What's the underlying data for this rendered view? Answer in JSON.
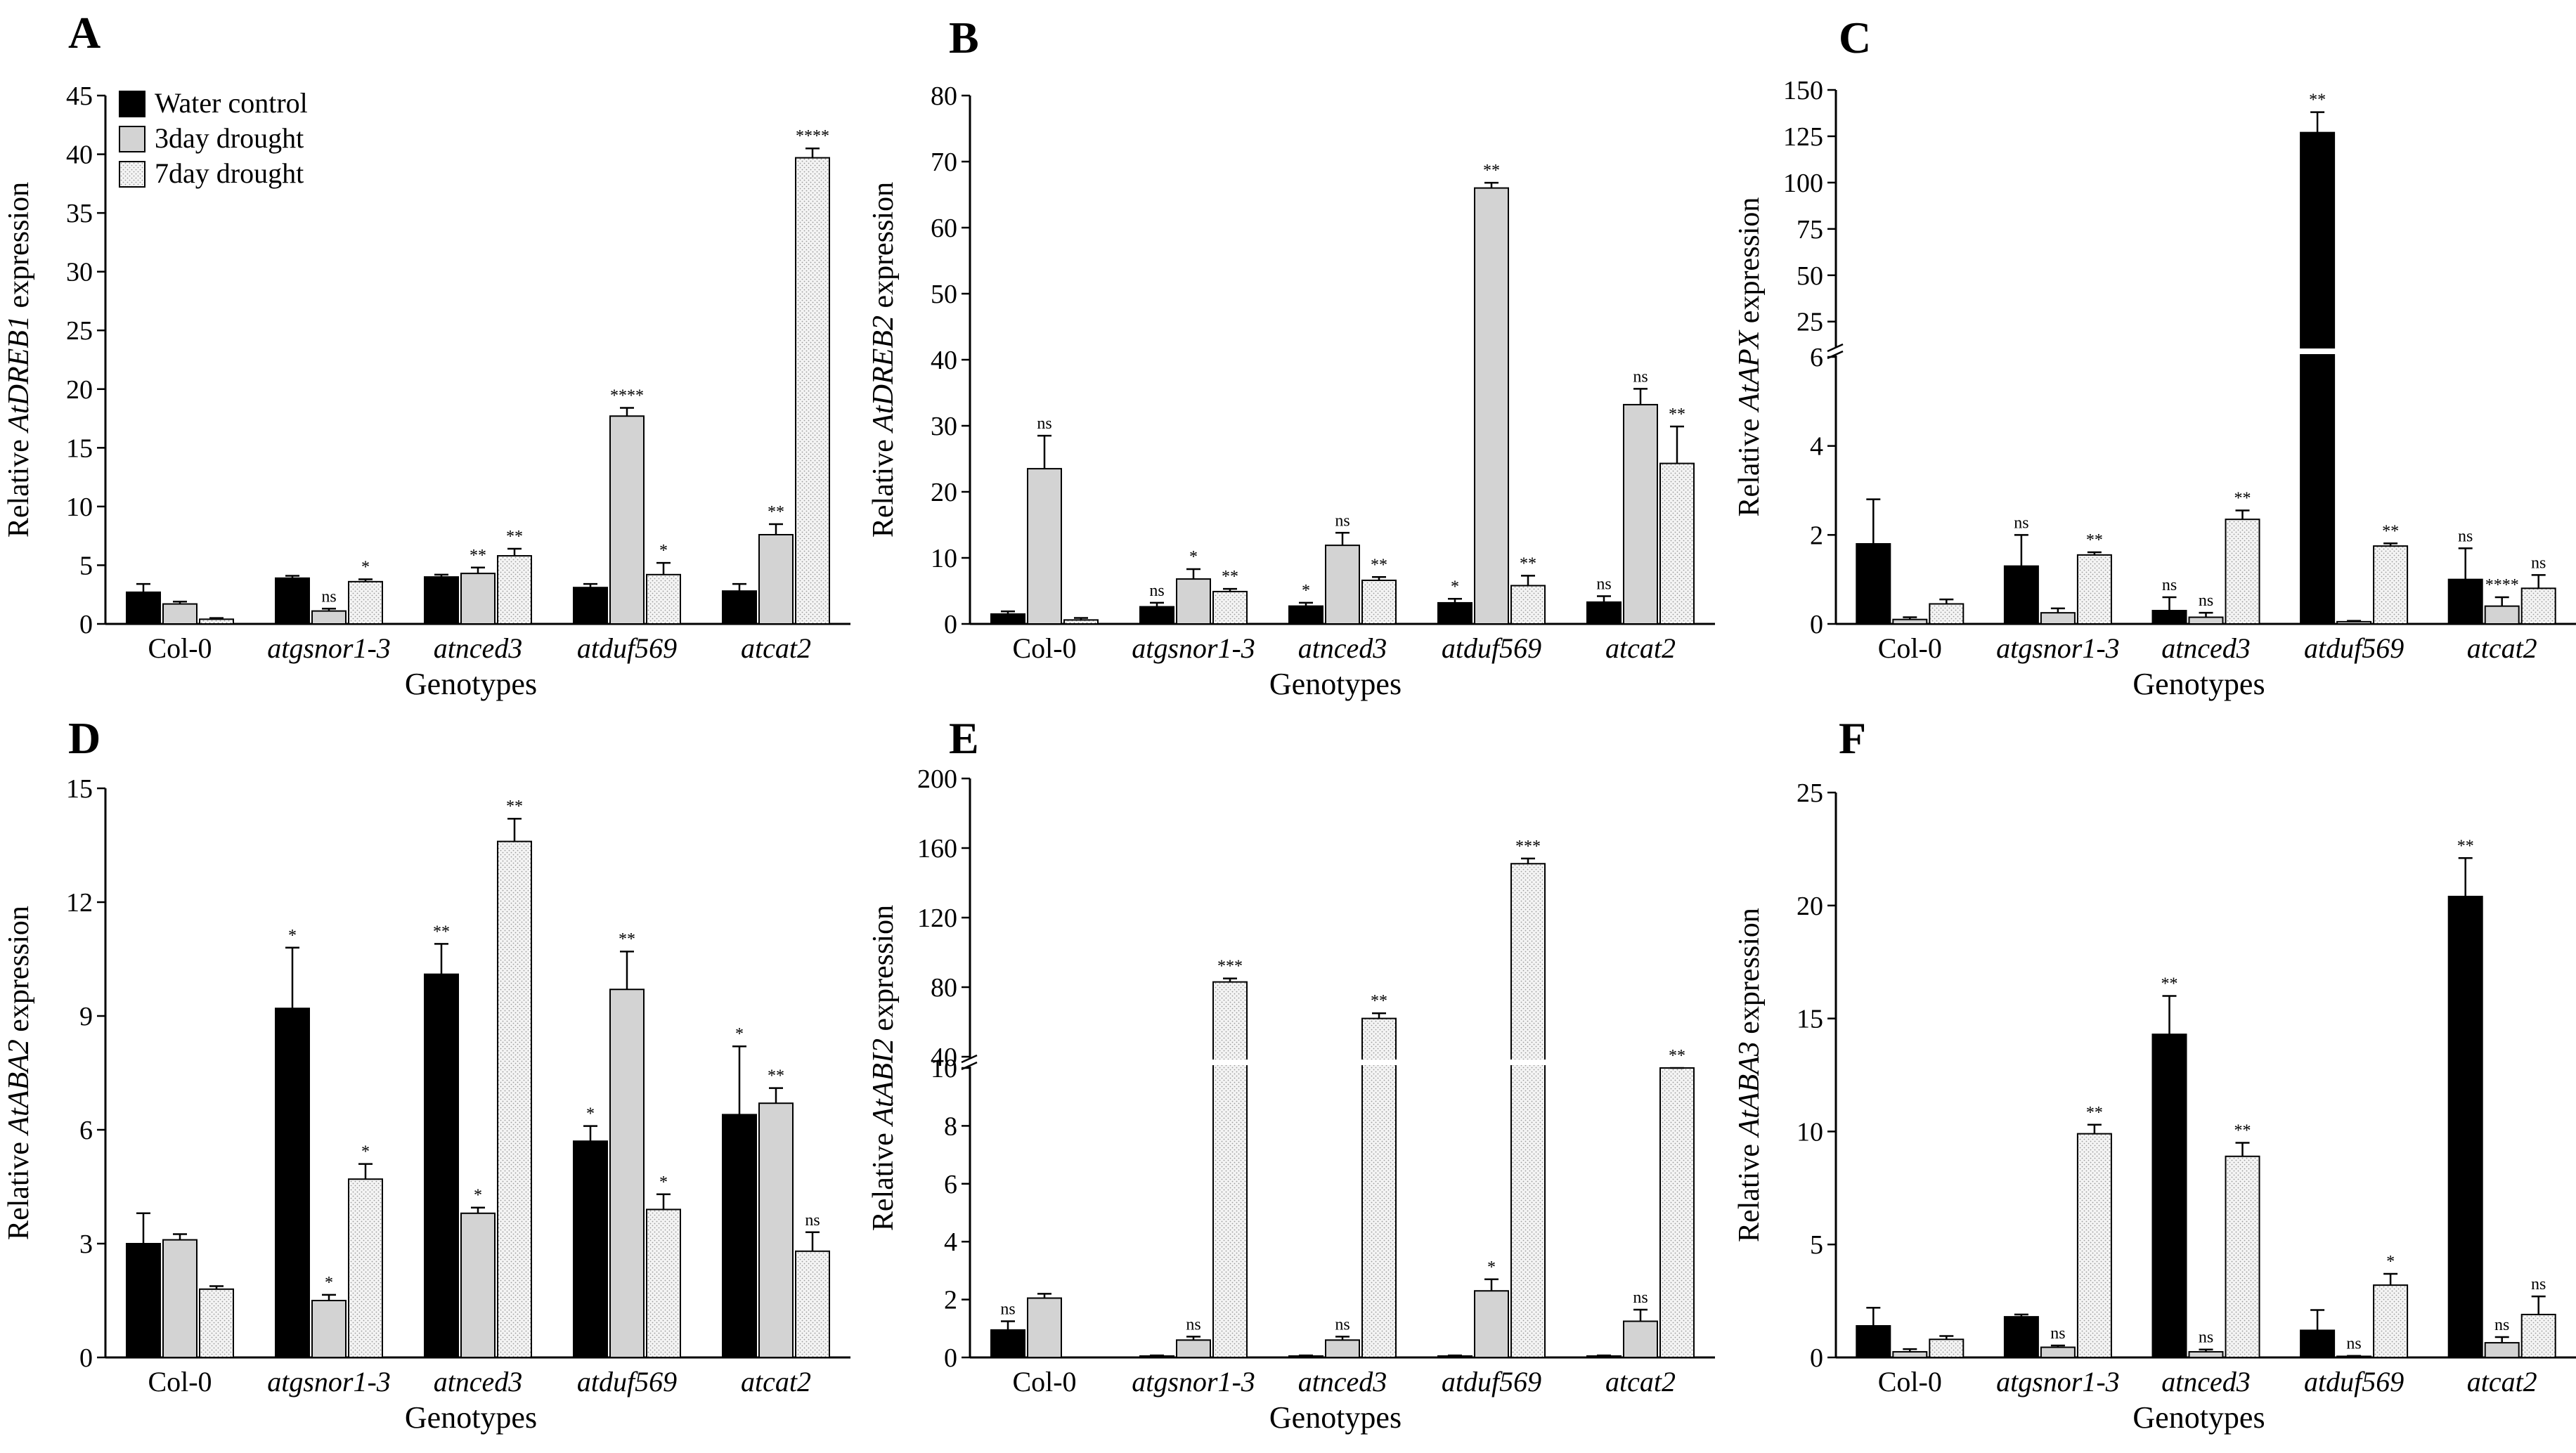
{
  "legend": {
    "items": [
      {
        "label": "Water control",
        "style": "black"
      },
      {
        "label": "3day drought",
        "style": "gray"
      },
      {
        "label": "7day drought",
        "style": "dotted"
      }
    ]
  },
  "styles": {
    "black": {
      "fill": "#000000"
    },
    "gray": {
      "fill": "#d3d3d3"
    },
    "dotted": {
      "fill": "#f4f4f4",
      "dot": "#9a9a9a"
    }
  },
  "chart_data": [
    {
      "id": "A",
      "type": "bar",
      "panel_label": "A",
      "ylabel_prefix": "Relative ",
      "ylabel_gene": "AtDREB1",
      "ylabel_suffix": " expression",
      "xlabel": "Genotypes",
      "categories": [
        "Col-0",
        "atgsnor1-3",
        "atnced3",
        "atduf569",
        "atcat2"
      ],
      "ylim": [
        0,
        45
      ],
      "yticks": [
        0,
        5,
        10,
        15,
        20,
        25,
        30,
        35,
        40,
        45
      ],
      "series": [
        {
          "name": "Water control",
          "values": [
            2.7,
            3.9,
            4.0,
            3.1,
            2.8
          ],
          "errors": [
            0.7,
            0.2,
            0.2,
            0.3,
            0.6
          ],
          "sig": [
            "",
            "",
            "",
            "",
            ""
          ]
        },
        {
          "name": "3day drought",
          "values": [
            1.7,
            1.1,
            4.3,
            17.7,
            7.6
          ],
          "errors": [
            0.2,
            0.2,
            0.5,
            0.7,
            0.9
          ],
          "sig": [
            "",
            "ns",
            "**",
            "****",
            "**"
          ]
        },
        {
          "name": "7day drought",
          "values": [
            0.4,
            3.6,
            5.8,
            4.2,
            39.7
          ],
          "errors": [
            0.1,
            0.2,
            0.6,
            1.0,
            0.8
          ],
          "sig": [
            "",
            "*",
            "**",
            "*",
            "****"
          ]
        }
      ]
    },
    {
      "id": "B",
      "type": "bar",
      "panel_label": "B",
      "ylabel_prefix": "Relative ",
      "ylabel_gene": "AtDREB2",
      "ylabel_suffix": " expression",
      "xlabel": "Genotypes",
      "categories": [
        "Col-0",
        "atgsnor1-3",
        "atnced3",
        "atduf569",
        "atcat2"
      ],
      "ylim": [
        0,
        80
      ],
      "yticks": [
        0,
        10,
        20,
        30,
        40,
        50,
        60,
        70,
        80
      ],
      "series": [
        {
          "name": "Water control",
          "values": [
            1.5,
            2.6,
            2.7,
            3.2,
            3.3
          ],
          "errors": [
            0.4,
            0.6,
            0.5,
            0.6,
            0.9
          ],
          "sig": [
            "",
            "ns",
            "*",
            "*",
            "ns"
          ]
        },
        {
          "name": "3day drought",
          "values": [
            23.5,
            6.8,
            11.9,
            66.0,
            33.2
          ],
          "errors": [
            5.0,
            1.5,
            1.9,
            0.8,
            2.4
          ],
          "sig": [
            "ns",
            "*",
            "ns",
            "**",
            "ns"
          ]
        },
        {
          "name": "7day drought",
          "values": [
            0.6,
            4.9,
            6.6,
            5.8,
            24.3
          ],
          "errors": [
            0.3,
            0.4,
            0.5,
            1.5,
            5.6
          ],
          "sig": [
            "",
            "**",
            "**",
            "**",
            "**"
          ]
        }
      ]
    },
    {
      "id": "C",
      "type": "bar",
      "panel_label": "C",
      "ylabel_prefix": "Relative ",
      "ylabel_gene": "AtAPX",
      "ylabel_suffix": " expression",
      "xlabel": "Genotypes",
      "categories": [
        "Col-0",
        "atgsnor1-3",
        "atnced3",
        "atduf569",
        "atcat2"
      ],
      "ylim": [
        0,
        150
      ],
      "axis_break": [
        6,
        12
      ],
      "lower_ticks": [
        0,
        2,
        4,
        6
      ],
      "upper_ticks": [
        25,
        50,
        75,
        100,
        125,
        150
      ],
      "series": [
        {
          "name": "Water control",
          "values": [
            1.8,
            1.3,
            0.3,
            127,
            1.0
          ],
          "errors": [
            1.0,
            0.7,
            0.3,
            11,
            0.7
          ],
          "sig": [
            "",
            "ns",
            "ns",
            "**",
            "ns"
          ]
        },
        {
          "name": "3day drought",
          "values": [
            0.1,
            0.25,
            0.15,
            0.05,
            0.4
          ],
          "errors": [
            0.05,
            0.1,
            0.1,
            0.02,
            0.2
          ],
          "sig": [
            "",
            "",
            "ns",
            "",
            "****"
          ]
        },
        {
          "name": "7day drought",
          "values": [
            0.45,
            1.55,
            2.35,
            1.75,
            0.8
          ],
          "errors": [
            0.1,
            0.06,
            0.2,
            0.06,
            0.3
          ],
          "sig": [
            "",
            "**",
            "**",
            "**",
            "ns"
          ]
        }
      ]
    },
    {
      "id": "D",
      "type": "bar",
      "panel_label": "D",
      "ylabel_prefix": "Relative ",
      "ylabel_gene": "AtABA2",
      "ylabel_suffix": " expression",
      "xlabel": "Genotypes",
      "categories": [
        "Col-0",
        "atgsnor1-3",
        "atnced3",
        "atduf569",
        "atcat2"
      ],
      "ylim": [
        0,
        15
      ],
      "yticks": [
        0,
        3,
        6,
        9,
        12,
        15
      ],
      "series": [
        {
          "name": "Water control",
          "values": [
            3.0,
            9.2,
            10.1,
            5.7,
            6.4
          ],
          "errors": [
            0.8,
            1.6,
            0.8,
            0.4,
            1.8
          ],
          "sig": [
            "",
            "*",
            "**",
            "*",
            "*"
          ]
        },
        {
          "name": "3day drought",
          "values": [
            3.1,
            1.5,
            3.8,
            9.7,
            6.7
          ],
          "errors": [
            0.15,
            0.15,
            0.15,
            1.0,
            0.4
          ],
          "sig": [
            "",
            "*",
            "*",
            "**",
            "**"
          ]
        },
        {
          "name": "7day drought",
          "values": [
            1.8,
            4.7,
            13.6,
            3.9,
            2.8
          ],
          "errors": [
            0.08,
            0.4,
            0.6,
            0.4,
            0.5
          ],
          "sig": [
            "",
            "*",
            "**",
            "*",
            "ns"
          ]
        }
      ]
    },
    {
      "id": "E",
      "type": "bar",
      "panel_label": "E",
      "ylabel_prefix": "Relative ",
      "ylabel_gene": "AtABI2",
      "ylabel_suffix": " expression",
      "xlabel": "Genotypes",
      "categories": [
        "Col-0",
        "atgsnor1-3",
        "atnced3",
        "atduf569",
        "atcat2"
      ],
      "ylim": [
        0,
        200
      ],
      "axis_break": [
        10,
        40
      ],
      "lower_ticks": [
        0,
        2,
        4,
        6,
        8,
        10
      ],
      "upper_ticks": [
        40,
        80,
        120,
        160,
        200
      ],
      "series": [
        {
          "name": "Water control",
          "values": [
            0.95,
            0.05,
            0.05,
            0.05,
            0.05
          ],
          "errors": [
            0.3,
            0.02,
            0.02,
            0.02,
            0.02
          ],
          "sig": [
            "ns",
            "",
            "",
            "",
            ""
          ]
        },
        {
          "name": "3day drought",
          "values": [
            2.05,
            0.6,
            0.6,
            2.3,
            1.25
          ],
          "errors": [
            0.15,
            0.12,
            0.12,
            0.4,
            0.4
          ],
          "sig": [
            "",
            "ns",
            "ns",
            "*",
            "ns"
          ]
        },
        {
          "name": "7day drought",
          "values": [
            0,
            83,
            62,
            151,
            37
          ],
          "errors": [
            0,
            2,
            3,
            3,
            2
          ],
          "sig": [
            "",
            "***",
            "**",
            "***",
            "**"
          ]
        }
      ]
    },
    {
      "id": "F",
      "type": "bar",
      "panel_label": "F",
      "ylabel_prefix": "Relative ",
      "ylabel_gene": "AtABA3",
      "ylabel_suffix": " expression",
      "xlabel": "Genotypes",
      "categories": [
        "Col-0",
        "atgsnor1-3",
        "atnced3",
        "atduf569",
        "atcat2"
      ],
      "ylim": [
        0,
        25
      ],
      "yticks": [
        0,
        5,
        10,
        15,
        20,
        25
      ],
      "series": [
        {
          "name": "Water control",
          "values": [
            1.4,
            1.8,
            14.3,
            1.2,
            20.4
          ],
          "errors": [
            0.8,
            0.1,
            1.7,
            0.9,
            1.7
          ],
          "sig": [
            "",
            "",
            "**",
            "",
            "**"
          ]
        },
        {
          "name": "3day drought",
          "values": [
            0.25,
            0.45,
            0.25,
            0.05,
            0.65
          ],
          "errors": [
            0.12,
            0.08,
            0.1,
            0.02,
            0.25
          ],
          "sig": [
            "",
            "ns",
            "ns",
            "ns",
            "ns"
          ]
        },
        {
          "name": "7day drought",
          "values": [
            0.8,
            9.9,
            8.9,
            3.2,
            1.9
          ],
          "errors": [
            0.15,
            0.4,
            0.6,
            0.5,
            0.8
          ],
          "sig": [
            "",
            "**",
            "**",
            "*",
            "ns"
          ]
        }
      ]
    }
  ]
}
